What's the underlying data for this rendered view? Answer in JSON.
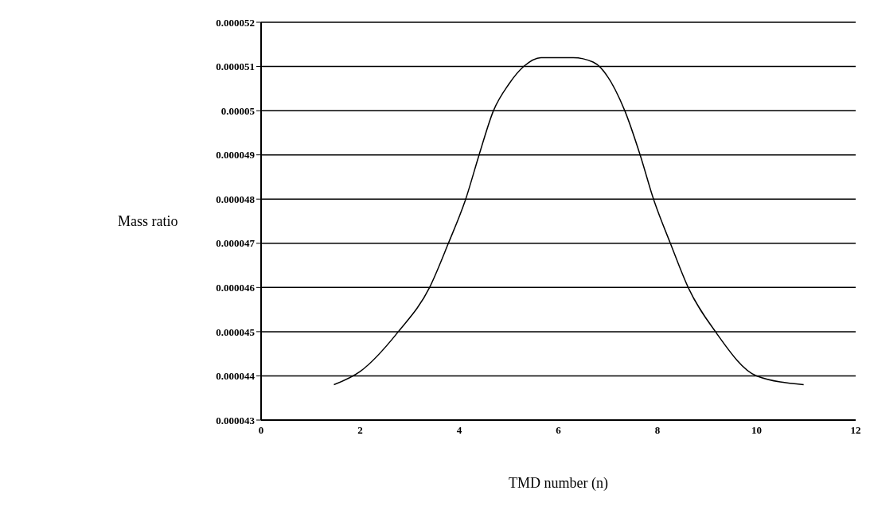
{
  "chart_data": {
    "type": "line",
    "xlabel": "TMD number (n)",
    "ylabel": "Mass ratio",
    "x": [
      1.47,
      2,
      2.77,
      3.4,
      3.78,
      4.13,
      4.4,
      4.69,
      5,
      5.3,
      5.65,
      6.3,
      6.7,
      7.34,
      7.65,
      7.92,
      8.26,
      8.62,
      9.17,
      10,
      10.95
    ],
    "series": [
      {
        "color": "#000000",
        "values": [
          4.38e-05,
          4.41e-05,
          4.5e-05,
          4.6e-05,
          4.7e-05,
          4.8e-05,
          4.9e-05,
          5e-05,
          5.06e-05,
          5.1e-05,
          5.12e-05,
          5.12e-05,
          5.11e-05,
          5e-05,
          4.9e-05,
          4.8e-05,
          4.7e-05,
          4.6e-05,
          4.5e-05,
          4.4e-05,
          4.38e-05
        ]
      }
    ],
    "xlim": [
      0,
      12
    ],
    "xticks": [
      0,
      2,
      4,
      6,
      8,
      10,
      12
    ],
    "ylim": [
      4.3e-05,
      5.2e-05
    ],
    "yticks": [
      {
        "value": 4.3e-05,
        "label": "0.000043"
      },
      {
        "value": 4.4e-05,
        "label": "0.000044"
      },
      {
        "value": 4.5e-05,
        "label": "0.000045"
      },
      {
        "value": 4.6e-05,
        "label": "0.000046"
      },
      {
        "value": 4.7e-05,
        "label": "0.000047"
      },
      {
        "value": 4.8e-05,
        "label": "0.000048"
      },
      {
        "value": 4.9e-05,
        "label": "0.000049"
      },
      {
        "value": 5e-05,
        "label": "0.00005"
      },
      {
        "value": 5.1e-05,
        "label": "0.000051"
      },
      {
        "value": 5.2e-05,
        "label": "0.000052"
      }
    ],
    "grid": "y",
    "marker": "none",
    "line_style": "solid",
    "legend": false
  }
}
